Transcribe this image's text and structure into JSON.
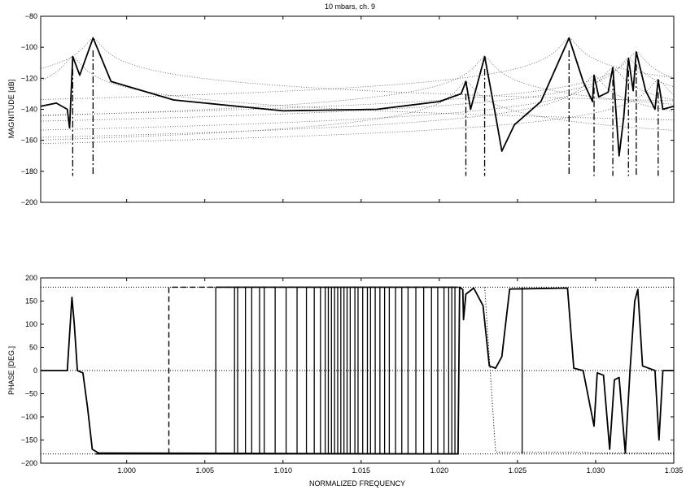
{
  "chart_data": [
    {
      "type": "line",
      "title": "10 mbars, ch. 9",
      "xlabel": "",
      "ylabel": "MAGNITUDE [dB]",
      "xlim": [
        0.9945,
        1.035
      ],
      "ylim": [
        -200,
        -80
      ],
      "yticks": [
        -80,
        -100,
        -120,
        -140,
        -160,
        -180,
        -200
      ],
      "grid": false,
      "resonances": [
        {
          "f": 0.99655,
          "peak": -106,
          "base": -183
        },
        {
          "f": 0.99785,
          "peak": -94,
          "base": -183
        },
        {
          "f": 1.0217,
          "peak": -122,
          "base": -183
        },
        {
          "f": 1.0229,
          "peak": -106,
          "base": -183
        },
        {
          "f": 1.0283,
          "peak": -94,
          "base": -183
        },
        {
          "f": 1.0299,
          "peak": -118,
          "base": -183
        },
        {
          "f": 1.0311,
          "peak": -113,
          "base": -183
        },
        {
          "f": 1.0321,
          "peak": -107,
          "base": -183
        },
        {
          "f": 1.0326,
          "peak": -103,
          "base": -183
        },
        {
          "f": 1.034,
          "peak": -121,
          "base": -183
        }
      ],
      "antiresonances": [
        {
          "f": 0.99635,
          "depth": -152
        },
        {
          "f": 1.024,
          "depth": -167
        },
        {
          "f": 1.0315,
          "depth": -170
        }
      ],
      "series": [
        {
          "name": "",
          "style": "solid-thick",
          "color": "#000000",
          "x": [
            0.9945,
            0.9955,
            0.9962,
            0.99635,
            0.99655,
            0.997,
            0.99785,
            0.999,
            1.003,
            1.01,
            1.016,
            1.02,
            1.0214,
            1.0217,
            1.022,
            1.0229,
            1.0236,
            1.024,
            1.0248,
            1.0265,
            1.0283,
            1.0292,
            1.0298,
            1.0299,
            1.0302,
            1.0308,
            1.0311,
            1.0315,
            1.0318,
            1.0321,
            1.0324,
            1.0326,
            1.0332,
            1.0338,
            1.034,
            1.0343,
            1.035
          ],
          "y": [
            -138,
            -136,
            -140,
            -152,
            -106,
            -118,
            -94,
            -122,
            -134,
            -141,
            -140,
            -135,
            -130,
            -122,
            -140,
            -106,
            -144,
            -167,
            -150,
            -135,
            -94,
            -122,
            -135,
            -118,
            -132,
            -129,
            -113,
            -170,
            -145,
            -107,
            -128,
            -103,
            -128,
            -140,
            -121,
            -140,
            -138
          ]
        }
      ],
      "component_curves_style": "dotted"
    },
    {
      "type": "line",
      "title": "",
      "xlabel": "NORMALIZED FREQUENCY",
      "ylabel": "PHASE [DEG.]",
      "xlim": [
        0.9945,
        1.035
      ],
      "ylim": [
        -200,
        200
      ],
      "xticks": [
        1.0,
        1.005,
        1.01,
        1.015,
        1.02,
        1.025,
        1.03,
        1.035
      ],
      "xtick_labels": [
        "1.000",
        "1.005",
        "1.010",
        "1.015",
        "1.020",
        "1.025",
        "1.030",
        "1.035"
      ],
      "yticks": [
        200,
        150,
        100,
        50,
        0,
        -50,
        -100,
        -150,
        -200
      ],
      "grid": false,
      "reference_lines": [
        180,
        0,
        -180
      ],
      "series": [
        {
          "name": "",
          "style": "solid-thick",
          "color": "#000000",
          "x": [
            0.9945,
            0.9962,
            0.9965,
            0.99665,
            0.99685,
            0.9972,
            0.9975,
            0.9978,
            0.9982,
            1.0212,
            1.0213,
            1.0215,
            1.02155,
            1.0217,
            1.0222,
            1.0228,
            1.0232,
            1.0236,
            1.024,
            1.0245,
            1.0282,
            1.0286,
            1.0292,
            1.0299,
            1.0301,
            1.0305,
            1.0309,
            1.0312,
            1.0315,
            1.0319,
            1.0322,
            1.0325,
            1.0327,
            1.033,
            1.0338,
            1.03405,
            1.0343,
            1.035
          ],
          "y": [
            0,
            0,
            158,
            100,
            0,
            -5,
            -80,
            -170,
            -178,
            -180,
            180,
            175,
            110,
            165,
            178,
            140,
            10,
            5,
            30,
            176,
            178,
            5,
            0,
            -120,
            -5,
            -10,
            -170,
            -20,
            -15,
            -178,
            0,
            150,
            175,
            10,
            0,
            -150,
            0,
            0
          ]
        },
        {
          "name": "",
          "style": "dashed",
          "color": "#000000",
          "x": [
            1.0027,
            1.0027,
            1.0212
          ],
          "y": [
            -180,
            180,
            180
          ]
        },
        {
          "name": "",
          "style": "dotted",
          "color": "#000000",
          "x": [
            1.0229,
            1.0236,
            1.0283,
            1.0292,
            1.0293,
            1.0299,
            1.035
          ],
          "y": [
            180,
            -176,
            -176,
            -176,
            -176,
            -178,
            -178
          ]
        }
      ],
      "wrap_jumps": [
        1.0057,
        1.0069,
        1.0071,
        1.0076,
        1.008,
        1.0085,
        1.0088,
        1.0095,
        1.0102,
        1.0109,
        1.0115,
        1.012,
        1.0124,
        1.0127,
        1.0129,
        1.0131,
        1.0133,
        1.0135,
        1.0137,
        1.0139,
        1.0141,
        1.0143,
        1.0146,
        1.0148,
        1.0151,
        1.0154,
        1.0156,
        1.0159,
        1.0162,
        1.0165,
        1.0168,
        1.0172,
        1.0176,
        1.018,
        1.0185,
        1.019,
        1.0195,
        1.0199,
        1.0203,
        1.0206,
        1.0208,
        1.021,
        1.0253
      ]
    }
  ]
}
